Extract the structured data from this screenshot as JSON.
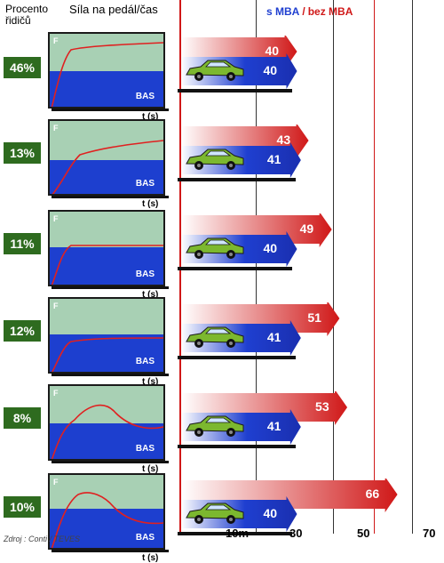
{
  "header": {
    "col1_line1": "Procento",
    "col1_line2": "řidičů",
    "col2": "Síla na pedál/čas",
    "legend_with": "s MBA",
    "legend_sep": "/",
    "legend_without": "bez MBA"
  },
  "colors": {
    "with": "#1f3fd0",
    "without": "#d01818",
    "graph_bg": "#a8d0b4",
    "graph_blue": "#1d3fcf",
    "pct_bg": "#2e6b1f",
    "car": "#7cb82f"
  },
  "rows": [
    {
      "percent": "46%",
      "f": "F",
      "bas": "BAS",
      "t": "t (s)",
      "with": "40",
      "without": "40",
      "with_m": 40,
      "without_m": 40
    },
    {
      "percent": "13%",
      "f": "F",
      "bas": "BAS",
      "t": "t (s)",
      "with": "41",
      "without": "43",
      "with_m": 41,
      "without_m": 43
    },
    {
      "percent": "11%",
      "f": "F",
      "bas": "BAS",
      "t": "t (s)",
      "with": "40",
      "without": "49",
      "with_m": 40,
      "without_m": 49
    },
    {
      "percent": "12%",
      "f": "F",
      "bas": "BAS",
      "t": "t (s)",
      "with": "41",
      "without": "51",
      "with_m": 41,
      "without_m": 51
    },
    {
      "percent": "8%",
      "f": "F",
      "bas": "BAS",
      "t": "t (s)",
      "with": "41",
      "without": "53",
      "with_m": 41,
      "without_m": 53
    },
    {
      "percent": "10%",
      "f": "F",
      "bas": "BAS",
      "t": "t (s)",
      "with": "40",
      "without": "66",
      "with_m": 40,
      "without_m": 66
    }
  ],
  "axis": {
    "ticks": [
      "10m",
      "30",
      "50",
      "70"
    ]
  },
  "source": "Zdroj : Conti / TEVES"
}
